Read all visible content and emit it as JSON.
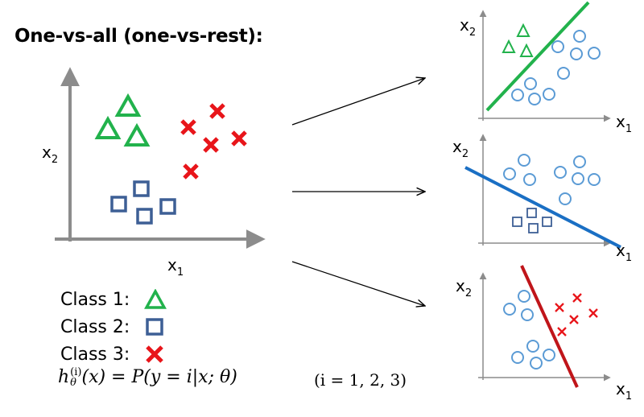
{
  "title": "One-vs-all (one-vs-rest):",
  "main_plot": {
    "x_label": "x",
    "x_label_sub": "1",
    "y_label": "x",
    "y_label_sub": "2"
  },
  "panels": [
    {
      "x_label": "x",
      "x_label_sub": "1",
      "y_label": "x",
      "y_label_sub": "2",
      "line_color": "#22b24c"
    },
    {
      "x_label": "x",
      "x_label_sub": "1",
      "y_label": "x",
      "y_label_sub": "2",
      "line_color": "#1a6fc4"
    },
    {
      "x_label": "x",
      "x_label_sub": "1",
      "y_label": "x",
      "y_label_sub": "2",
      "line_color": "#c0151a"
    }
  ],
  "legend": [
    {
      "label": "Class 1:",
      "marker": "triangle",
      "color": "#22b24c"
    },
    {
      "label": "Class 2:",
      "marker": "square",
      "color": "#3d5f95"
    },
    {
      "label": "Class 3:",
      "marker": "cross",
      "color": "#e8151a"
    }
  ],
  "formula": {
    "lhs": "h",
    "lhs_sub": "θ",
    "lhs_sup": "(i)",
    "rhs": "(x) = P(y = i|x; θ)",
    "condition": "(i = 1, 2, 3)"
  },
  "colors": {
    "axis": "#8c8c8c",
    "circle": "#5b9bd5",
    "triangle": "#22b24c",
    "square": "#3d5f95",
    "cross": "#e8151a"
  }
}
